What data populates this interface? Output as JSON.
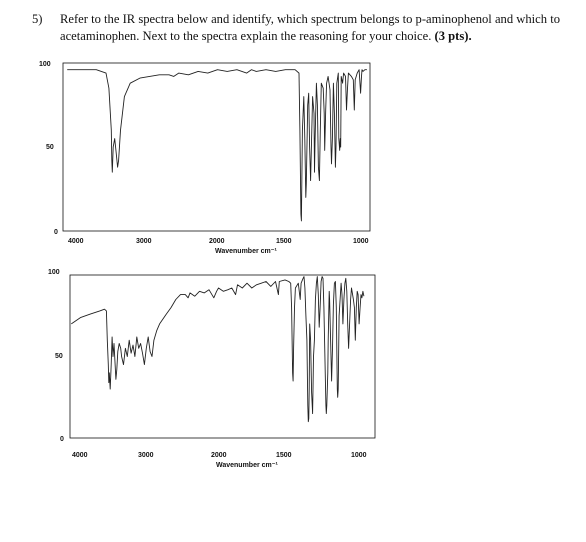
{
  "question": {
    "number": "5)",
    "text": "Refer to the IR spectra below and identify, which spectrum belongs to p-aminophenol and which to acetaminophen. Next to the spectra explain the reasoning for your choice.",
    "points": "(3 pts)."
  },
  "chart_data": [
    {
      "type": "line",
      "title": "",
      "xlabel": "Wavenumber cm⁻¹",
      "ylabel": "",
      "xlim": [
        4100,
        950
      ],
      "ylim": [
        0,
        100
      ],
      "x_ticks": [
        "4000",
        "3000",
        "2000",
        "1500",
        "1000"
      ],
      "y_ticks": [
        "100",
        "50",
        "0"
      ],
      "grid": false,
      "series": [
        {
          "points": [
            [
              4050,
              96
            ],
            [
              3900,
              96
            ],
            [
              3750,
              96
            ],
            [
              3650,
              94
            ],
            [
              3620,
              85
            ],
            [
              3595,
              60
            ],
            [
              3590,
              42
            ],
            [
              3585,
              35
            ],
            [
              3575,
              50
            ],
            [
              3560,
              55
            ],
            [
              3545,
              47
            ],
            [
              3530,
              38
            ],
            [
              3520,
              42
            ],
            [
              3500,
              60
            ],
            [
              3460,
              80
            ],
            [
              3400,
              88
            ],
            [
              3300,
              91
            ],
            [
              3200,
              92
            ],
            [
              3100,
              93
            ],
            [
              3000,
              93
            ],
            [
              2950,
              92
            ],
            [
              2900,
              94
            ],
            [
              2800,
              93
            ],
            [
              2700,
              95
            ],
            [
              2600,
              94
            ],
            [
              2500,
              96
            ],
            [
              2400,
              95
            ],
            [
              2300,
              96
            ],
            [
              2200,
              94
            ],
            [
              2150,
              96
            ],
            [
              2100,
              95
            ],
            [
              2000,
              96
            ],
            [
              1900,
              95
            ],
            [
              1800,
              96
            ],
            [
              1700,
              96
            ],
            [
              1660,
              94
            ],
            [
              1650,
              60
            ],
            [
              1640,
              10
            ],
            [
              1635,
              6
            ],
            [
              1625,
              60
            ],
            [
              1610,
              80
            ],
            [
              1600,
              55
            ],
            [
              1590,
              20
            ],
            [
              1585,
              28
            ],
            [
              1570,
              75
            ],
            [
              1560,
              82
            ],
            [
              1550,
              50
            ],
            [
              1540,
              30
            ],
            [
              1530,
              55
            ],
            [
              1520,
              80
            ],
            [
              1505,
              70
            ],
            [
              1500,
              35
            ],
            [
              1495,
              52
            ],
            [
              1480,
              88
            ],
            [
              1470,
              75
            ],
            [
              1460,
              38
            ],
            [
              1450,
              30
            ],
            [
              1440,
              60
            ],
            [
              1430,
              88
            ],
            [
              1410,
              85
            ],
            [
              1400,
              70
            ],
            [
              1395,
              48
            ],
            [
              1385,
              72
            ],
            [
              1375,
              88
            ],
            [
              1360,
              92
            ],
            [
              1340,
              84
            ],
            [
              1330,
              50
            ],
            [
              1325,
              40
            ],
            [
              1315,
              55
            ],
            [
              1305,
              88
            ],
            [
              1295,
              70
            ],
            [
              1285,
              38
            ],
            [
              1278,
              50
            ],
            [
              1270,
              88
            ],
            [
              1255,
              94
            ],
            [
              1250,
              55
            ],
            [
              1245,
              52
            ],
            [
              1240,
              48
            ],
            [
              1235,
              55
            ],
            [
              1230,
              50
            ],
            [
              1225,
              92
            ],
            [
              1210,
              88
            ],
            [
              1200,
              94
            ],
            [
              1180,
              92
            ],
            [
              1170,
              72
            ],
            [
              1160,
              85
            ],
            [
              1150,
              94
            ],
            [
              1120,
              92
            ],
            [
              1100,
              90
            ],
            [
              1090,
              72
            ],
            [
              1080,
              90
            ],
            [
              1060,
              94
            ],
            [
              1040,
              96
            ],
            [
              1025,
              82
            ],
            [
              1015,
              92
            ],
            [
              1010,
              96
            ],
            [
              1000,
              95
            ],
            [
              980,
              96
            ],
            [
              960,
              96
            ]
          ]
        }
      ]
    },
    {
      "type": "line",
      "title": "",
      "xlabel": "Wavenumber cm⁻¹",
      "ylabel": "",
      "xlim": [
        4100,
        950
      ],
      "ylim": [
        0,
        100
      ],
      "x_ticks": [
        "4000",
        "3000",
        "2000",
        "1500",
        "1000"
      ],
      "y_ticks": [
        "100",
        "50",
        "0"
      ],
      "grid": false,
      "series": [
        {
          "points": [
            [
              4050,
              70
            ],
            [
              3950,
              74
            ],
            [
              3850,
              76
            ],
            [
              3750,
              78
            ],
            [
              3700,
              79
            ],
            [
              3680,
              78
            ],
            [
              3670,
              60
            ],
            [
              3660,
              45
            ],
            [
              3655,
              34
            ],
            [
              3650,
              40
            ],
            [
              3640,
              30
            ],
            [
              3630,
              45
            ],
            [
              3620,
              62
            ],
            [
              3610,
              50
            ],
            [
              3600,
              58
            ],
            [
              3580,
              36
            ],
            [
              3570,
              42
            ],
            [
              3560,
              53
            ],
            [
              3545,
              58
            ],
            [
              3530,
              55
            ],
            [
              3520,
              50
            ],
            [
              3500,
              45
            ],
            [
              3480,
              55
            ],
            [
              3460,
              50
            ],
            [
              3440,
              60
            ],
            [
              3420,
              52
            ],
            [
              3400,
              57
            ],
            [
              3380,
              50
            ],
            [
              3360,
              62
            ],
            [
              3340,
              55
            ],
            [
              3320,
              58
            ],
            [
              3300,
              52
            ],
            [
              3280,
              45
            ],
            [
              3260,
              55
            ],
            [
              3240,
              62
            ],
            [
              3220,
              53
            ],
            [
              3200,
              50
            ],
            [
              3180,
              60
            ],
            [
              3150,
              66
            ],
            [
              3120,
              70
            ],
            [
              3050,
              76
            ],
            [
              3000,
              80
            ],
            [
              2950,
              85
            ],
            [
              2900,
              88
            ],
            [
              2850,
              88
            ],
            [
              2820,
              86
            ],
            [
              2800,
              89
            ],
            [
              2750,
              87
            ],
            [
              2700,
              90
            ],
            [
              2650,
              89
            ],
            [
              2600,
              91
            ],
            [
              2550,
              86
            ],
            [
              2520,
              90
            ],
            [
              2500,
              92
            ],
            [
              2450,
              90
            ],
            [
              2400,
              91
            ],
            [
              2360,
              92
            ],
            [
              2320,
              88
            ],
            [
              2300,
              94
            ],
            [
              2250,
              92
            ],
            [
              2200,
              95
            ],
            [
              2150,
              92
            ],
            [
              2100,
              94
            ],
            [
              2050,
              95
            ],
            [
              2000,
              96
            ],
            [
              1950,
              93
            ],
            [
              1900,
              96
            ],
            [
              1870,
              88
            ],
            [
              1860,
              96
            ],
            [
              1800,
              97
            ],
            [
              1760,
              96
            ],
            [
              1740,
              95
            ],
            [
              1730,
              80
            ],
            [
              1720,
              40
            ],
            [
              1715,
              35
            ],
            [
              1710,
              55
            ],
            [
              1700,
              80
            ],
            [
              1690,
              92
            ],
            [
              1660,
              95
            ],
            [
              1640,
              85
            ],
            [
              1630,
              95
            ],
            [
              1610,
              98
            ],
            [
              1600,
              99
            ],
            [
              1590,
              92
            ],
            [
              1580,
              75
            ],
            [
              1570,
              60
            ],
            [
              1560,
              20
            ],
            [
              1555,
              10
            ],
            [
              1550,
              12
            ],
            [
              1545,
              30
            ],
            [
              1540,
              70
            ],
            [
              1530,
              60
            ],
            [
              1520,
              28
            ],
            [
              1510,
              15
            ],
            [
              1505,
              30
            ],
            [
              1500,
              50
            ],
            [
              1490,
              60
            ],
            [
              1480,
              85
            ],
            [
              1470,
              95
            ],
            [
              1460,
              99
            ],
            [
              1450,
              88
            ],
            [
              1440,
              68
            ],
            [
              1430,
              80
            ],
            [
              1420,
              96
            ],
            [
              1410,
              99
            ],
            [
              1400,
              98
            ],
            [
              1390,
              80
            ],
            [
              1380,
              50
            ],
            [
              1370,
              20
            ],
            [
              1365,
              15
            ],
            [
              1360,
              20
            ],
            [
              1350,
              40
            ],
            [
              1345,
              60
            ],
            [
              1335,
              90
            ],
            [
              1330,
              85
            ],
            [
              1320,
              60
            ],
            [
              1310,
              35
            ],
            [
              1300,
              55
            ],
            [
              1290,
              82
            ],
            [
              1280,
              95
            ],
            [
              1270,
              96
            ],
            [
              1260,
              80
            ],
            [
              1250,
              30
            ],
            [
              1245,
              25
            ],
            [
              1240,
              30
            ],
            [
              1230,
              75
            ],
            [
              1220,
              85
            ],
            [
              1210,
              95
            ],
            [
              1200,
              88
            ],
            [
              1190,
              70
            ],
            [
              1180,
              85
            ],
            [
              1170,
              95
            ],
            [
              1160,
              98
            ],
            [
              1150,
              90
            ],
            [
              1140,
              70
            ],
            [
              1130,
              55
            ],
            [
              1120,
              70
            ],
            [
              1110,
              85
            ],
            [
              1100,
              92
            ],
            [
              1080,
              85
            ],
            [
              1070,
              80
            ],
            [
              1060,
              60
            ],
            [
              1050,
              80
            ],
            [
              1040,
              90
            ],
            [
              1030,
              88
            ],
            [
              1020,
              70
            ],
            [
              1010,
              80
            ],
            [
              1000,
              88
            ],
            [
              990,
              86
            ],
            [
              980,
              90
            ],
            [
              970,
              87
            ]
          ]
        }
      ]
    }
  ]
}
